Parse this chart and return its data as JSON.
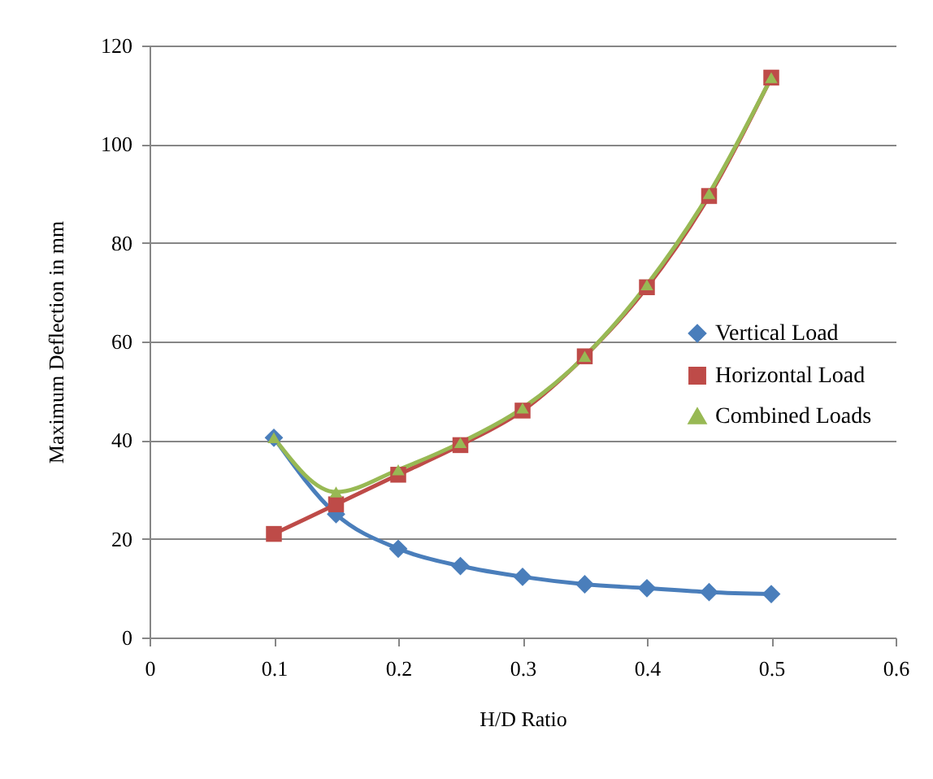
{
  "chart_data": {
    "type": "line",
    "xlabel": "H/D Ratio",
    "ylabel": "Maximum Deflection in mm",
    "x": [
      0.1,
      0.15,
      0.2,
      0.25,
      0.3,
      0.35,
      0.4,
      0.45,
      0.5
    ],
    "series": [
      {
        "name": "Vertical Load",
        "color": "#4a7ebb",
        "marker": "diamond",
        "values": [
          40.5,
          25,
          18,
          14.5,
          12.3,
          10.8,
          10,
          9.2,
          8.8
        ]
      },
      {
        "name": "Horizontal Load",
        "color": "#be4b48",
        "marker": "square",
        "values": [
          21,
          27,
          33,
          39,
          46,
          57,
          71,
          89.5,
          113.5
        ]
      },
      {
        "name": "Combined Loads",
        "color": "#98b954",
        "marker": "triangle",
        "values": [
          40.5,
          29.5,
          34,
          39.5,
          46.5,
          57,
          71.5,
          90,
          113.5
        ]
      }
    ],
    "xlim": [
      0,
      0.6
    ],
    "xticks": [
      0,
      0.1,
      0.2,
      0.3,
      0.4,
      0.5,
      0.6
    ],
    "ylim": [
      0,
      120
    ],
    "yticks": [
      0,
      20,
      40,
      60,
      80,
      100,
      120
    ],
    "grid": "y",
    "legend": "right",
    "line_style": "solid"
  }
}
